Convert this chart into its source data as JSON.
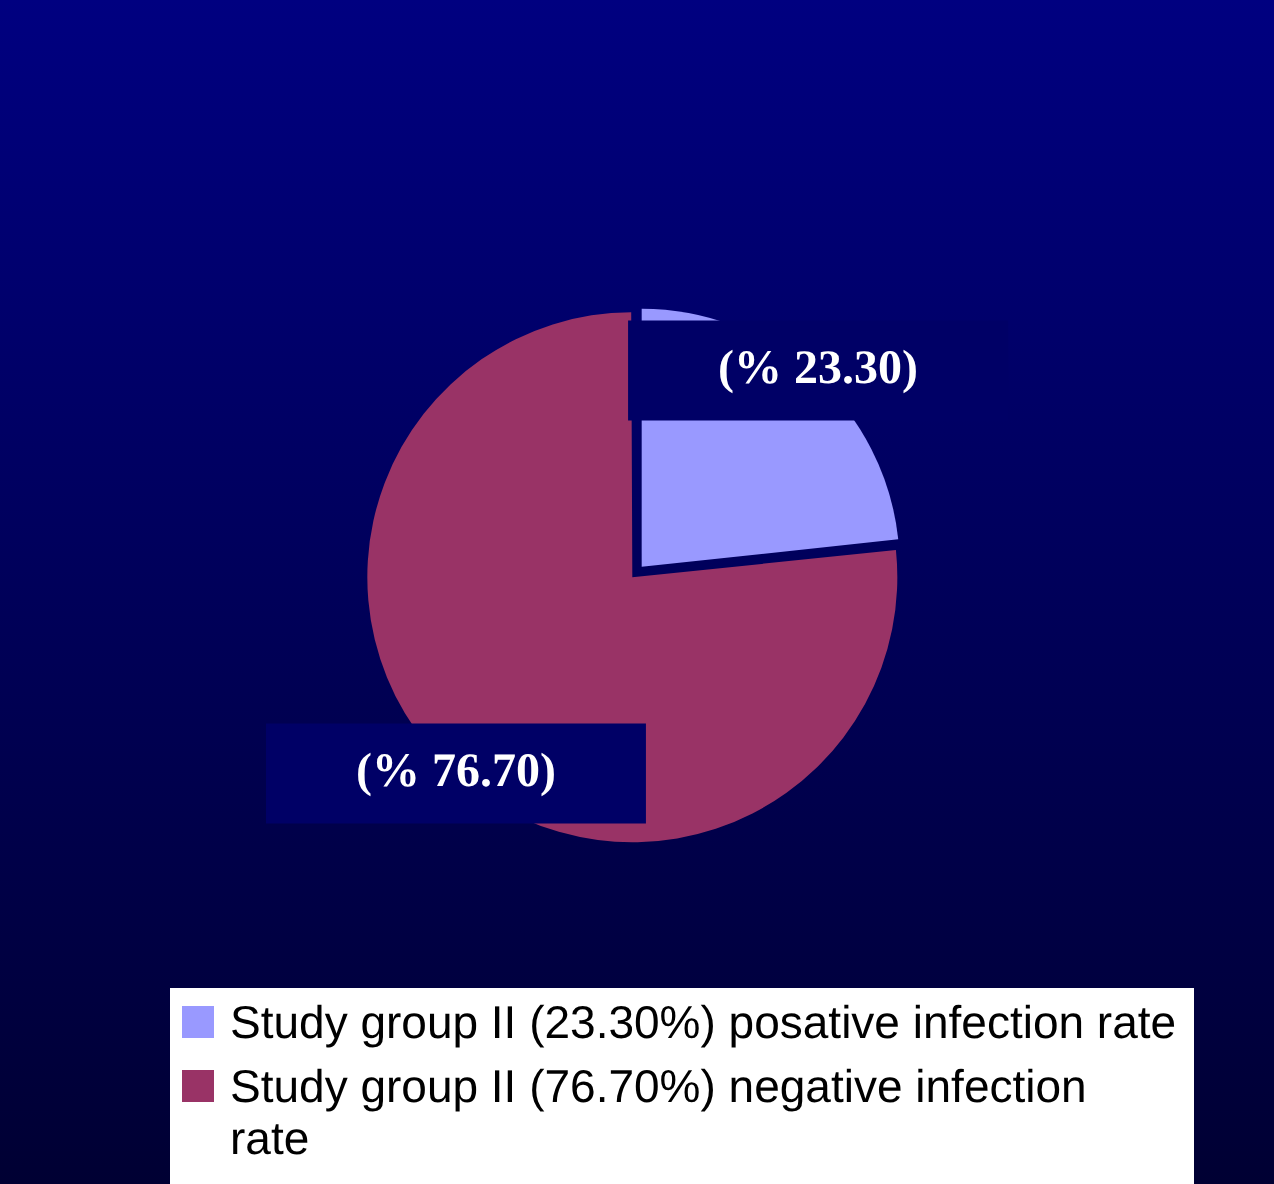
{
  "chart_data": {
    "type": "pie",
    "categories": [
      "Study group  II  (23.30%) posative infection rate",
      "Study group II  (76.70%) negative infection rate"
    ],
    "values": [
      23.3,
      76.7
    ],
    "colors": [
      "#9999ff",
      "#993366"
    ],
    "value_labels": [
      "(% 23.30)",
      "(% 76.70)"
    ],
    "legend": "bottom"
  }
}
